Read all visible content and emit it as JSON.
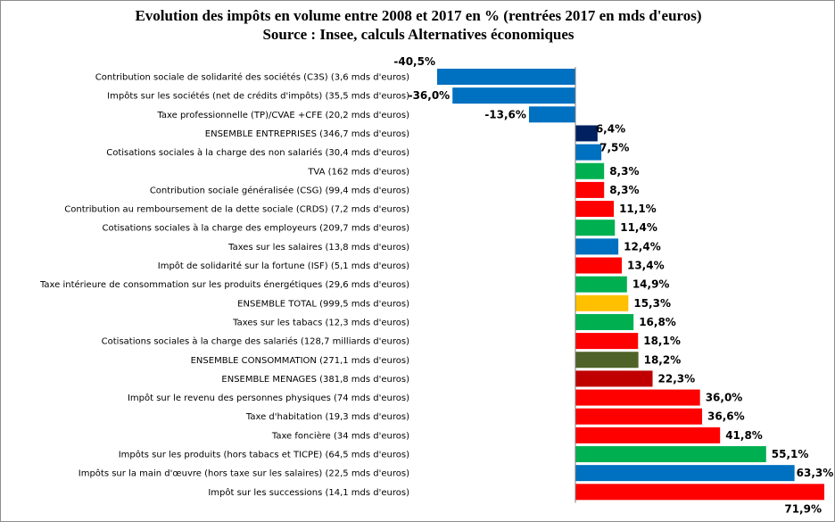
{
  "chart_data": {
    "type": "bar",
    "orientation": "horizontal",
    "title": "Evolution des impôts en volume entre 2008 et 2017 en % (rentrées 2017 en mds d'euros)",
    "subtitle": "Source : Insee, calculs Alternatives économiques",
    "xlim": [
      -40.5,
      71.9
    ],
    "grid": false,
    "legend": "none",
    "bars": [
      {
        "category": "Contribution sociale de solidarité des sociétés (C3S) (3,6 mds d'euros)",
        "value": -40.5,
        "label": "-40,5%",
        "color": "#0070C0"
      },
      {
        "category": "Impôts sur les sociétés (net de crédits d'impôts) (35,5 mds d'euros)",
        "value": -36.0,
        "label": "-36,0%",
        "color": "#0070C0"
      },
      {
        "category": "Taxe professionnelle (TP)/CVAE +CFE (20,2 mds d'euros)",
        "value": -13.6,
        "label": "-13,6%",
        "color": "#0070C0"
      },
      {
        "category": "ENSEMBLE ENTREPRISES  (346,7 mds d'euros)",
        "value": 6.4,
        "label": "6,4%",
        "color": "#002060"
      },
      {
        "category": "Cotisations sociales à la charge des non salariés  (30,4 mds d'euros)",
        "value": 7.5,
        "label": "7,5%",
        "color": "#0070C0"
      },
      {
        "category": "TVA (162 mds d'euros)",
        "value": 8.3,
        "label": "8,3%",
        "color": "#00B050"
      },
      {
        "category": "Contribution sociale généralisée  (CSG) (99,4 mds d'euros)",
        "value": 8.3,
        "label": "8,3%",
        "color": "#FF0000"
      },
      {
        "category": "Contribution au remboursement de la dette sociale  (CRDS) (7,2 mds d'euros)",
        "value": 11.1,
        "label": "11,1%",
        "color": "#FF0000"
      },
      {
        "category": "Cotisations sociales à la charge des employeurs (209,7 mds d'euros)",
        "value": 11.4,
        "label": "11,4%",
        "color": "#00B050"
      },
      {
        "category": "Taxes sur les salaires  (13,8 mds d'euros)",
        "value": 12.4,
        "label": "12,4%",
        "color": "#0070C0"
      },
      {
        "category": "Impôt de solidarité  sur la fortune (ISF) (5,1 mds d'euros)",
        "value": 13.4,
        "label": "13,4%",
        "color": "#FF0000"
      },
      {
        "category": "Taxe intérieure de consommation  sur les produits énergétiques (29,6 mds d'euros)",
        "value": 14.9,
        "label": "14,9%",
        "color": "#00B050"
      },
      {
        "category": "ENSEMBLE TOTAL  (999,5 mds d'euros)",
        "value": 15.3,
        "label": "15,3%",
        "color": "#FFC000"
      },
      {
        "category": "Taxes sur les tabacs  (12,3 mds d'euros)",
        "value": 16.8,
        "label": "16,8%",
        "color": "#00B050"
      },
      {
        "category": "Cotisations sociales  à  la charge des salariés  (128,7 milliards d'euros)",
        "value": 18.1,
        "label": "18,1%",
        "color": "#FF0000"
      },
      {
        "category": "ENSEMBLE CONSOMMATION  (271,1 mds d'euros)",
        "value": 18.2,
        "label": "18,2%",
        "color": "#4F6228"
      },
      {
        "category": "ENSEMBLE MENAGES  (381,8 mds d'euros)",
        "value": 22.3,
        "label": "22,3%",
        "color": "#C00000"
      },
      {
        "category": "Impôt sur le revenu des personnes physiques  (74 mds d'euros)",
        "value": 36.0,
        "label": "36,0%",
        "color": "#FF0000"
      },
      {
        "category": "Taxe d'habitation  (19,3 mds d'euros)",
        "value": 36.6,
        "label": "36,6%",
        "color": "#FF0000"
      },
      {
        "category": "Taxe foncière  (34 mds d'euros)",
        "value": 41.8,
        "label": "41,8%",
        "color": "#FF0000"
      },
      {
        "category": "Impôts sur les produits  (hors tabacs  et TICPE) (64,5 mds d'euros)",
        "value": 55.1,
        "label": "55,1%",
        "color": "#00B050"
      },
      {
        "category": "Impôts sur la main d'œuvre  (hors taxe sur les salaires) (22,5 mds d'euros)",
        "value": 63.3,
        "label": "63,3%",
        "color": "#0070C0"
      },
      {
        "category": "Impôt sur les successions  (14,1 mds d'euros)",
        "value": 71.9,
        "label": "71,9%",
        "color": "#FF0000"
      }
    ]
  }
}
